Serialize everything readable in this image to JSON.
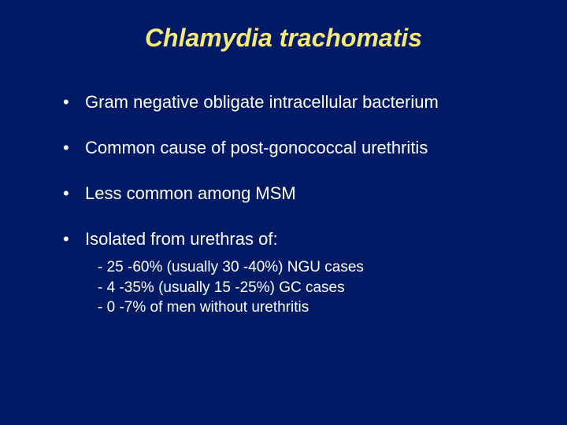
{
  "slide": {
    "background_color": "#001a66",
    "title": {
      "text": "Chlamydia trachomatis",
      "color": "#f5e97a",
      "fontsize": 32,
      "font_style": "italic",
      "font_weight": "bold"
    },
    "bullets": [
      {
        "text": "Gram negative obligate intracellular bacterium"
      },
      {
        "text": "Common cause of post-gonococcal urethritis"
      },
      {
        "text": "Less common among MSM"
      },
      {
        "text": "Isolated from urethras of:",
        "subitems": [
          "- 25 -60% (usually 30 -40%) NGU cases",
          "- 4 -35% (usually 15 -25%) GC cases",
          "- 0 -7% of men without urethritis"
        ]
      }
    ],
    "body_text_color": "#ffffff",
    "bullet_fontsize": 22,
    "sub_fontsize": 19
  }
}
